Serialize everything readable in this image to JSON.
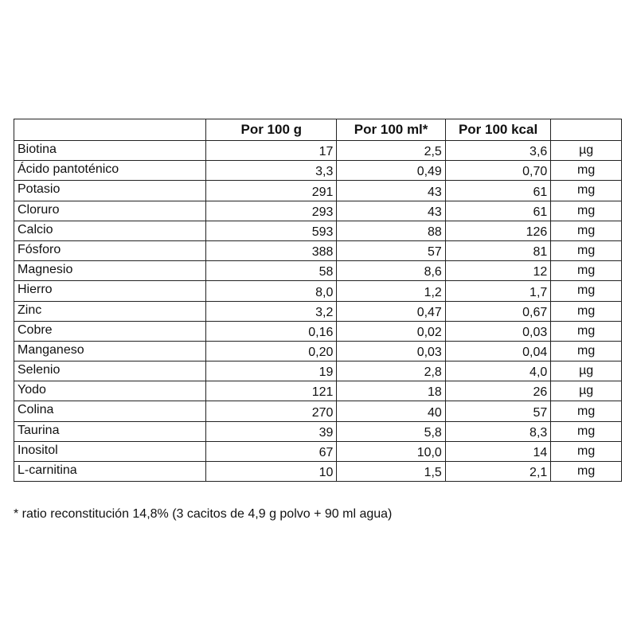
{
  "table": {
    "headers": [
      "",
      "Por 100 g",
      "Por 100 ml*",
      "Por 100 kcal",
      ""
    ],
    "rows": [
      [
        "Biotina",
        "17",
        "2,5",
        "3,6",
        "µg"
      ],
      [
        "Ácido pantoténico",
        "3,3",
        "0,49",
        "0,70",
        "mg"
      ],
      [
        "Potasio",
        "291",
        "43",
        "61",
        "mg"
      ],
      [
        "Cloruro",
        "293",
        "43",
        "61",
        "mg"
      ],
      [
        "Calcio",
        "593",
        "88",
        "126",
        "mg"
      ],
      [
        "Fósforo",
        "388",
        "57",
        "81",
        "mg"
      ],
      [
        "Magnesio",
        "58",
        "8,6",
        "12",
        "mg"
      ],
      [
        "Hierro",
        "8,0",
        "1,2",
        "1,7",
        "mg"
      ],
      [
        "Zinc",
        "3,2",
        "0,47",
        "0,67",
        "mg"
      ],
      [
        "Cobre",
        "0,16",
        "0,02",
        "0,03",
        "mg"
      ],
      [
        "Manganeso",
        "0,20",
        "0,03",
        "0,04",
        "mg"
      ],
      [
        "Selenio",
        "19",
        "2,8",
        "4,0",
        "µg"
      ],
      [
        "Yodo",
        "121",
        "18",
        "26",
        "µg"
      ],
      [
        "Colina",
        "270",
        "40",
        "57",
        "mg"
      ],
      [
        "Taurina",
        "39",
        "5,8",
        "8,3",
        "mg"
      ],
      [
        "Inositol",
        "67",
        "10,0",
        "14",
        "mg"
      ],
      [
        "L-carnitina",
        "10",
        "1,5",
        "2,1",
        "mg"
      ]
    ]
  },
  "footnote": "* ratio reconstitución 14,8% (3 cacitos de 4,9 g polvo + 90 ml agua)"
}
